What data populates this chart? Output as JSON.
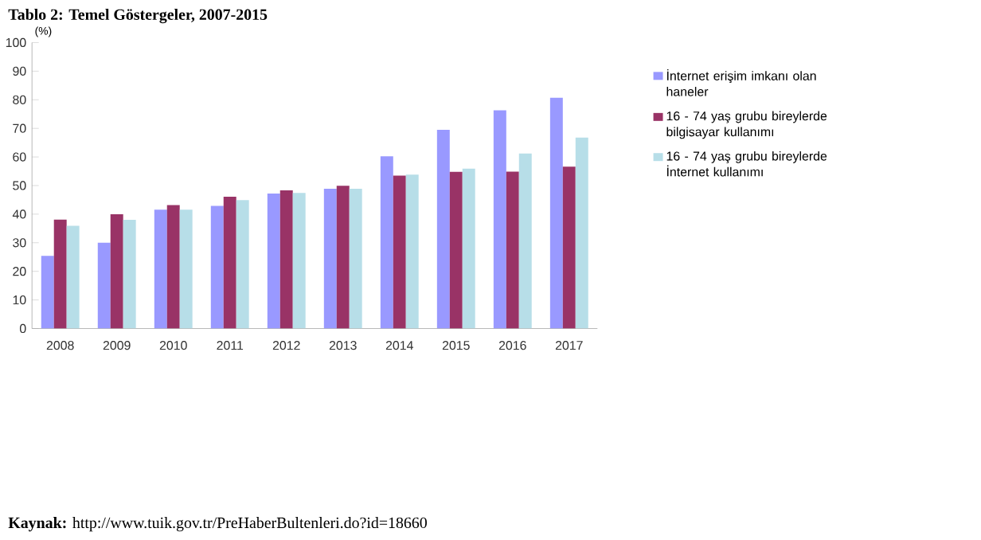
{
  "chart_data": {
    "type": "bar",
    "title": "Tablo 2: Temel Göstergeler, 2007-2015",
    "ylabel": "(%)",
    "annotations": [
      "**Kaynak:** http://www.tuik.gov.tr/PreHaberBultenleri.do?id=18660"
    ],
    "categories": [
      "2008",
      "2009",
      "2010",
      "2011",
      "2012",
      "2013",
      "2014",
      "2015",
      "2016",
      "2017"
    ],
    "series": [
      {
        "name": "İnternet erişim imkanı olan haneler",
        "color": "#9999ff",
        "values": [
          25.4,
          30,
          41.6,
          42.9,
          47.2,
          48.9,
          60.2,
          69.5,
          76.3,
          80.7
        ]
      },
      {
        "name": "16 - 74 yaş grubu bireylerde bilgisayar kullanımı",
        "color": "#993366",
        "values": [
          38.1,
          40,
          43.2,
          46.1,
          48.3,
          49.9,
          53.5,
          54.8,
          54.9,
          56.6
        ]
      },
      {
        "name": "16 - 74 yaş grubu bireylerde İnternet kullanımı",
        "color": "#b7dee8",
        "values": [
          35.9,
          38,
          41.6,
          44.9,
          47.4,
          48.9,
          53.8,
          55.9,
          61.2,
          66.8
        ]
      }
    ],
    "ylim": [
      0,
      100
    ],
    "yticks": [
      0,
      10,
      20,
      30,
      40,
      50,
      60,
      70,
      80,
      90,
      100
    ],
    "grid": false,
    "legend": "right"
  }
}
